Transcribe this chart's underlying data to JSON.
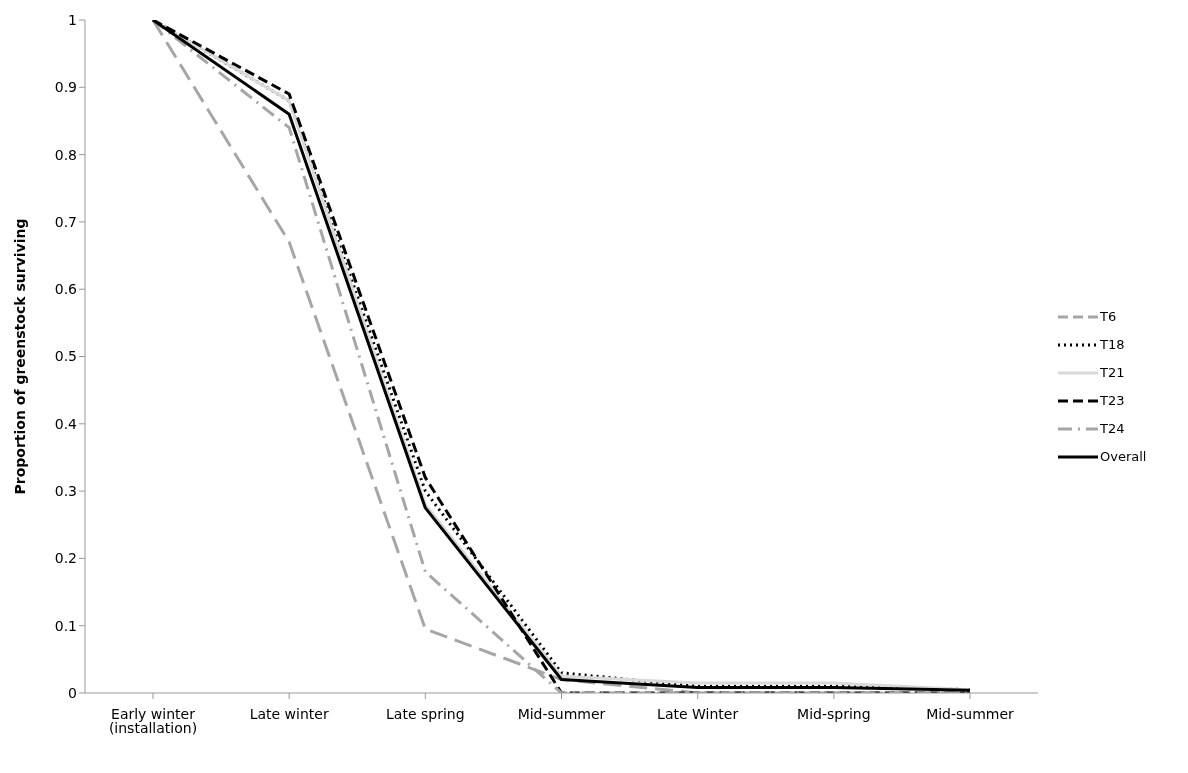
{
  "chart_data": {
    "type": "line",
    "ylabel": "Proportion of greenstock surviving",
    "categories": [
      "Early winter (installation)",
      "Late winter",
      "Late spring",
      "Mid-summer",
      "Late Winter",
      "Mid-spring",
      "Mid-summer"
    ],
    "ylim": [
      0,
      1
    ],
    "yticks": [
      0,
      0.1,
      0.2,
      0.3,
      0.4,
      0.5,
      0.6,
      0.7,
      0.8,
      0.9,
      1
    ],
    "grid": false,
    "legend": "right",
    "marker": "none",
    "series": [
      {
        "name": "T6",
        "color": "#a6a6a6",
        "line_style": "dashed",
        "values": [
          1,
          0.67,
          0.095,
          0.02,
          0,
          0,
          0
        ]
      },
      {
        "name": "T18",
        "color": "#000000",
        "line_style": "dotted",
        "values": [
          1,
          0.88,
          0.3,
          0.03,
          0.01,
          0.01,
          0.005
        ]
      },
      {
        "name": "T21",
        "color": "#d9d9d9",
        "line_style": "solid",
        "values": [
          1,
          0.88,
          0.28,
          0.025,
          0.015,
          0.015,
          0.005
        ]
      },
      {
        "name": "T23",
        "color": "#000000",
        "line_style": "dashed",
        "values": [
          1,
          0.89,
          0.32,
          0,
          0,
          0,
          0
        ]
      },
      {
        "name": "T24",
        "color": "#a6a6a6",
        "line_style": "dashdot",
        "values": [
          1,
          0.84,
          0.18,
          0,
          0,
          0,
          0
        ]
      },
      {
        "name": "Overall",
        "color": "#000000",
        "line_style": "solid",
        "values": [
          1,
          0.86,
          0.275,
          0.02,
          0.008,
          0.008,
          0.004
        ]
      }
    ]
  }
}
